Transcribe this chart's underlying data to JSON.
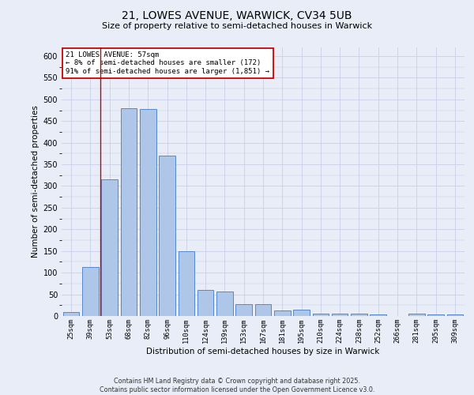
{
  "title_line1": "21, LOWES AVENUE, WARWICK, CV34 5UB",
  "title_line2": "Size of property relative to semi-detached houses in Warwick",
  "xlabel": "Distribution of semi-detached houses by size in Warwick",
  "ylabel": "Number of semi-detached properties",
  "categories": [
    "25sqm",
    "39sqm",
    "53sqm",
    "68sqm",
    "82sqm",
    "96sqm",
    "110sqm",
    "124sqm",
    "139sqm",
    "153sqm",
    "167sqm",
    "181sqm",
    "195sqm",
    "210sqm",
    "224sqm",
    "238sqm",
    "252sqm",
    "266sqm",
    "281sqm",
    "295sqm",
    "309sqm"
  ],
  "values": [
    10,
    113,
    315,
    480,
    478,
    370,
    150,
    60,
    57,
    27,
    28,
    13,
    14,
    5,
    5,
    5,
    3,
    0,
    6,
    3,
    3
  ],
  "bar_color": "#aec6e8",
  "bar_edge_color": "#5588cc",
  "red_line_x": 1.5,
  "annotation_text": "21 LOWES AVENUE: 57sqm\n← 8% of semi-detached houses are smaller (172)\n91% of semi-detached houses are larger (1,851) →",
  "annotation_box_color": "#ffffff",
  "annotation_box_edge": "#cc0000",
  "red_line_color": "#cc0000",
  "grid_color": "#c8d0e8",
  "background_color": "#e8edf8",
  "footer_text": "Contains HM Land Registry data © Crown copyright and database right 2025.\nContains public sector information licensed under the Open Government Licence v3.0.",
  "ylim": [
    0,
    620
  ],
  "yticks": [
    0,
    50,
    100,
    150,
    200,
    250,
    300,
    350,
    400,
    450,
    500,
    550,
    600
  ]
}
